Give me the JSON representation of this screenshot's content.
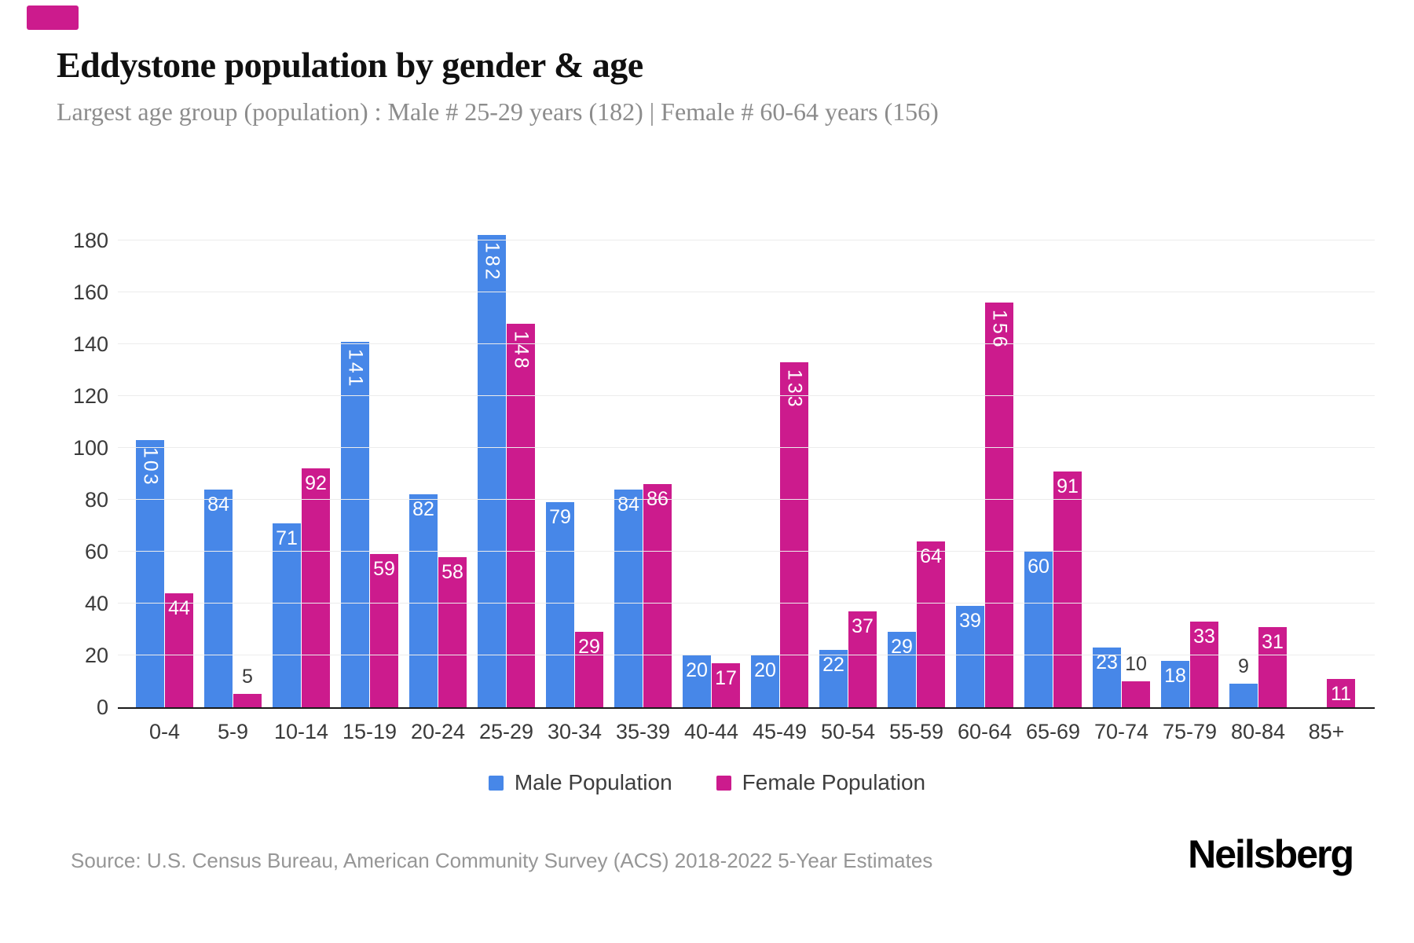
{
  "brand": {
    "accent_color": "#CC1B8D"
  },
  "header": {
    "title": "Eddystone population by gender & age",
    "subtitle": "Largest age group (population) : Male # 25-29 years (182) | Female # 60-64 years (156)"
  },
  "chart_data": {
    "type": "bar",
    "categories": [
      "0-4",
      "5-9",
      "10-14",
      "15-19",
      "20-24",
      "25-29",
      "30-34",
      "35-39",
      "40-44",
      "45-49",
      "50-54",
      "55-59",
      "60-64",
      "65-69",
      "70-74",
      "75-79",
      "80-84",
      "85+"
    ],
    "series": [
      {
        "name": "Male Population",
        "color": "#4787E8",
        "values": [
          103,
          84,
          71,
          141,
          82,
          182,
          79,
          84,
          20,
          20,
          22,
          29,
          39,
          60,
          23,
          18,
          9,
          0
        ]
      },
      {
        "name": "Female Population",
        "color": "#CC1B8D",
        "values": [
          44,
          5,
          92,
          59,
          58,
          148,
          29,
          86,
          17,
          133,
          37,
          64,
          156,
          91,
          10,
          33,
          31,
          11
        ]
      }
    ],
    "xlabel": "",
    "ylabel": "",
    "ylim": [
      0,
      180
    ],
    "yticks": [
      0,
      20,
      40,
      60,
      80,
      100,
      120,
      140,
      160,
      180
    ],
    "grid": true,
    "legend_position": "bottom-center",
    "value_labels": "inside-top-white; rotated vertical when value >= 100; dark label above bar when bar too short (5, 10, 9)"
  },
  "footer": {
    "source": "Source: U.S. Census Bureau, American Community Survey (ACS) 2018-2022 5-Year Estimates",
    "brand": "Neilsberg"
  }
}
